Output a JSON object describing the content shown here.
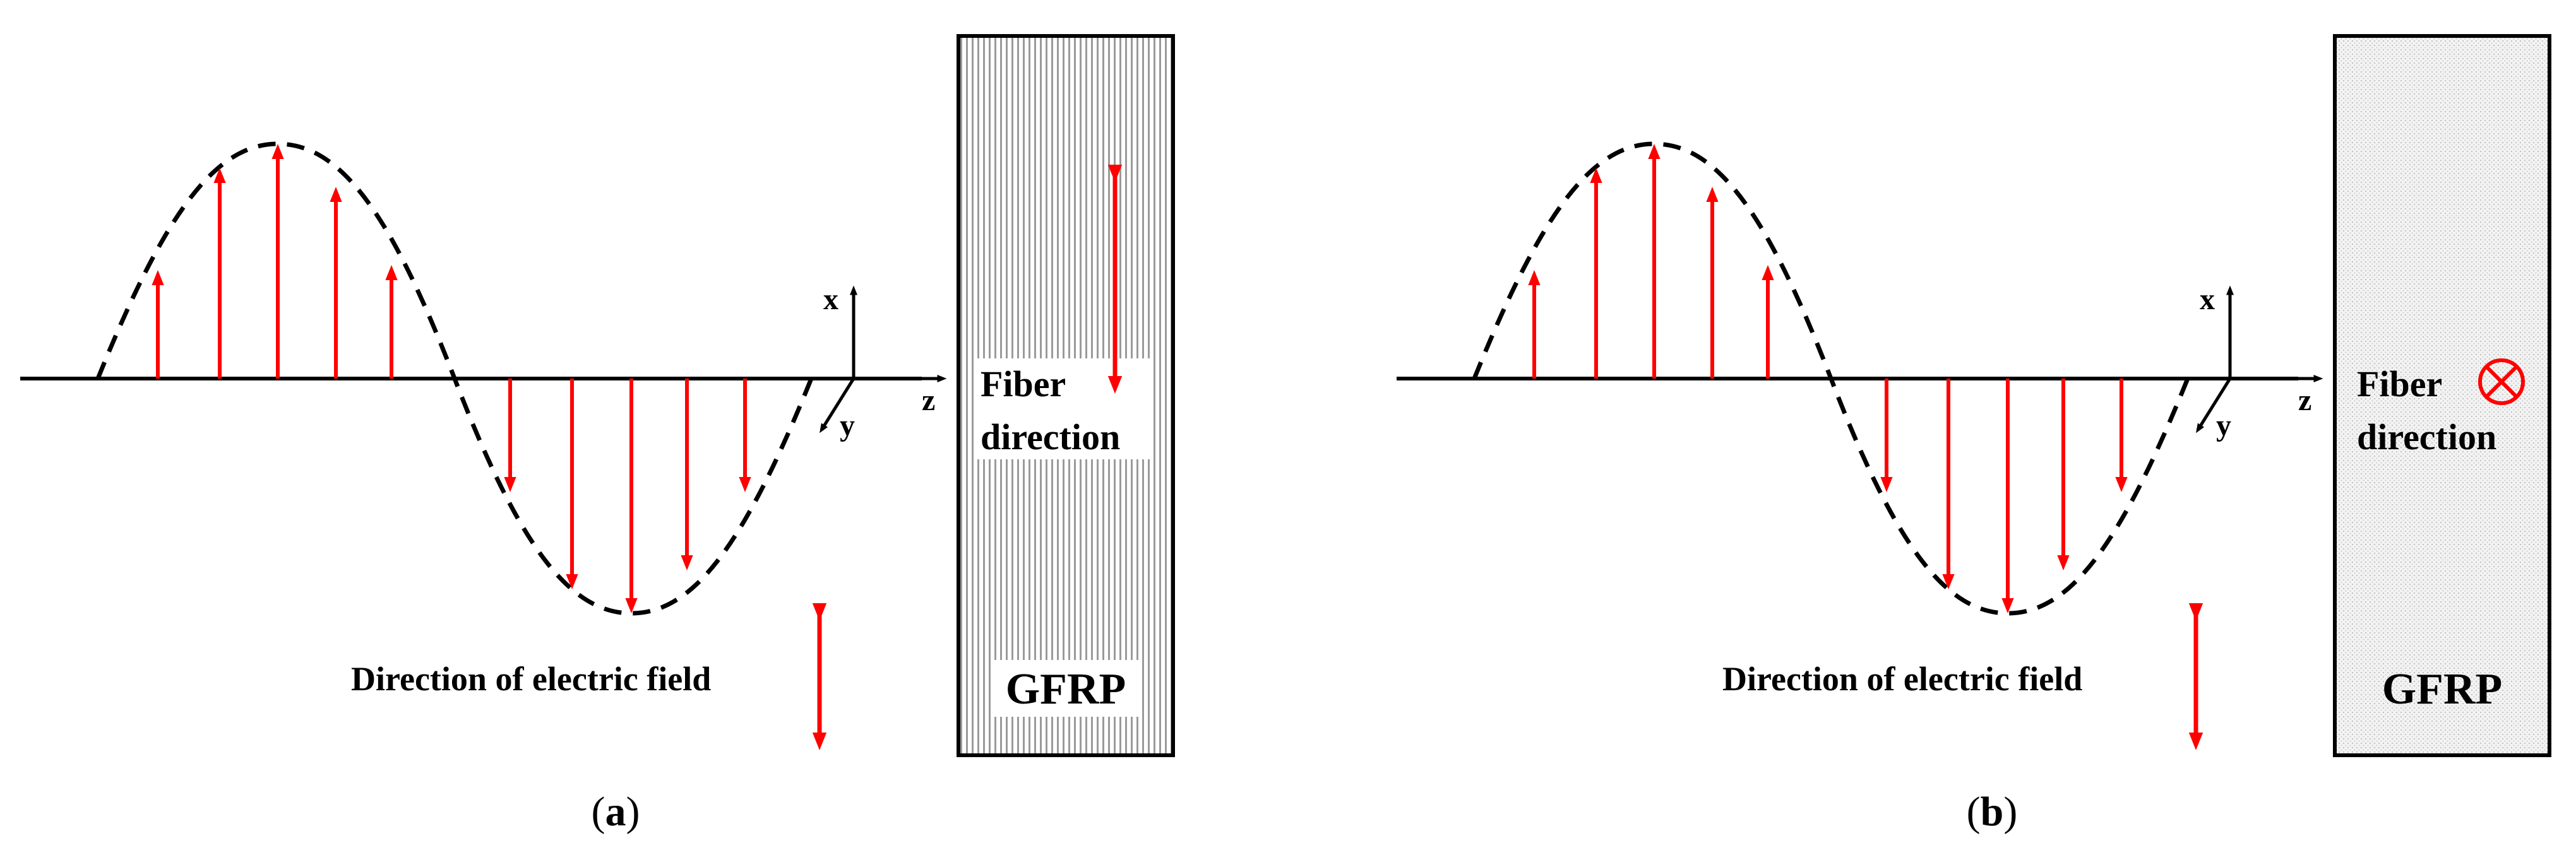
{
  "panels": [
    {
      "id": "a",
      "caption_open": "(",
      "caption_letter": "a",
      "caption_close": ")",
      "axis_x": "x",
      "axis_y": "y",
      "axis_z": "z",
      "fiber_line1": "Fiber",
      "fiber_line2": "direction",
      "field_label": "Direction of electric field",
      "material_label": "GFRP",
      "fiber_orientation": "parallel-to-x",
      "material_texture": "vertical-stripes"
    },
    {
      "id": "b",
      "caption_open": "(",
      "caption_letter": "b",
      "caption_close": ")",
      "axis_x": "x",
      "axis_y": "y",
      "axis_z": "z",
      "fiber_line1": "Fiber",
      "fiber_line2": "direction",
      "field_label": "Direction of electric field",
      "material_label": "GFRP",
      "fiber_orientation": "into-page",
      "material_texture": "dotted"
    }
  ],
  "colors": {
    "field_arrow": "#ff0000",
    "wave": "#000000",
    "line": "#000000",
    "fiber_symbol": "#ff0000"
  }
}
